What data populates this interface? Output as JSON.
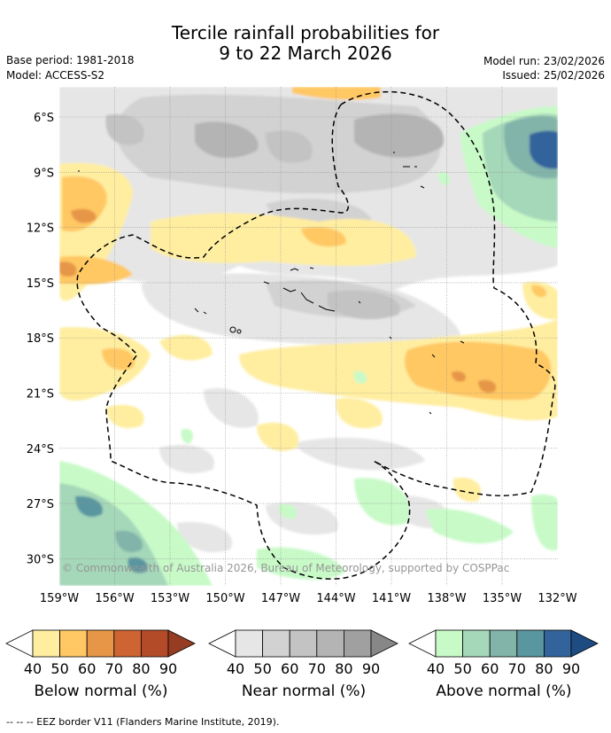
{
  "title": {
    "line1": "Tercile rainfall probabilities for",
    "line2": "9 to 22 March 2026"
  },
  "meta": {
    "base_period": "Base period: 1981-2018",
    "model": "Model: ACCESS-S2",
    "model_run": "Model run: 23/02/2026",
    "issued": "Issued: 25/02/2026"
  },
  "axes": {
    "lat_labels": [
      "6°S",
      "9°S",
      "12°S",
      "15°S",
      "18°S",
      "21°S",
      "24°S",
      "27°S",
      "30°S"
    ],
    "lon_labels": [
      "159°W",
      "156°W",
      "153°W",
      "150°W",
      "147°W",
      "144°W",
      "141°W",
      "138°W",
      "135°W",
      "132°W"
    ]
  },
  "copyright": "© Commonwealth of Australia 2026, Bureau of Meteorology, supported by COSPPac",
  "legends": [
    {
      "name": "below",
      "caption": "Below normal (%)",
      "ticks": [
        "40",
        "50",
        "60",
        "70",
        "80",
        "90"
      ],
      "colors": [
        "#ffeea0",
        "#ffc864",
        "#e69646",
        "#cd6432",
        "#b44b28"
      ],
      "arrow": "#963c23"
    },
    {
      "name": "near",
      "caption": "Near normal (%)",
      "ticks": [
        "40",
        "50",
        "60",
        "70",
        "80",
        "90"
      ],
      "colors": [
        "#e6e6e6",
        "#d2d2d2",
        "#c3c3c3",
        "#b4b4b4",
        "#a0a0a0"
      ],
      "arrow": "#878787"
    },
    {
      "name": "above",
      "caption": "Above normal (%)",
      "ticks": [
        "40",
        "50",
        "60",
        "70",
        "80",
        "90"
      ],
      "colors": [
        "#c8fac8",
        "#a5d7b9",
        "#82b4aa",
        "#5a96a0",
        "#32649b"
      ],
      "arrow": "#1e4b82"
    }
  ],
  "footnote": "--  --  -- EEZ border V11 (Flanders Marine Institute, 2019).",
  "colors": {
    "white": "#ffffff",
    "grid": "#8c8c8c"
  }
}
